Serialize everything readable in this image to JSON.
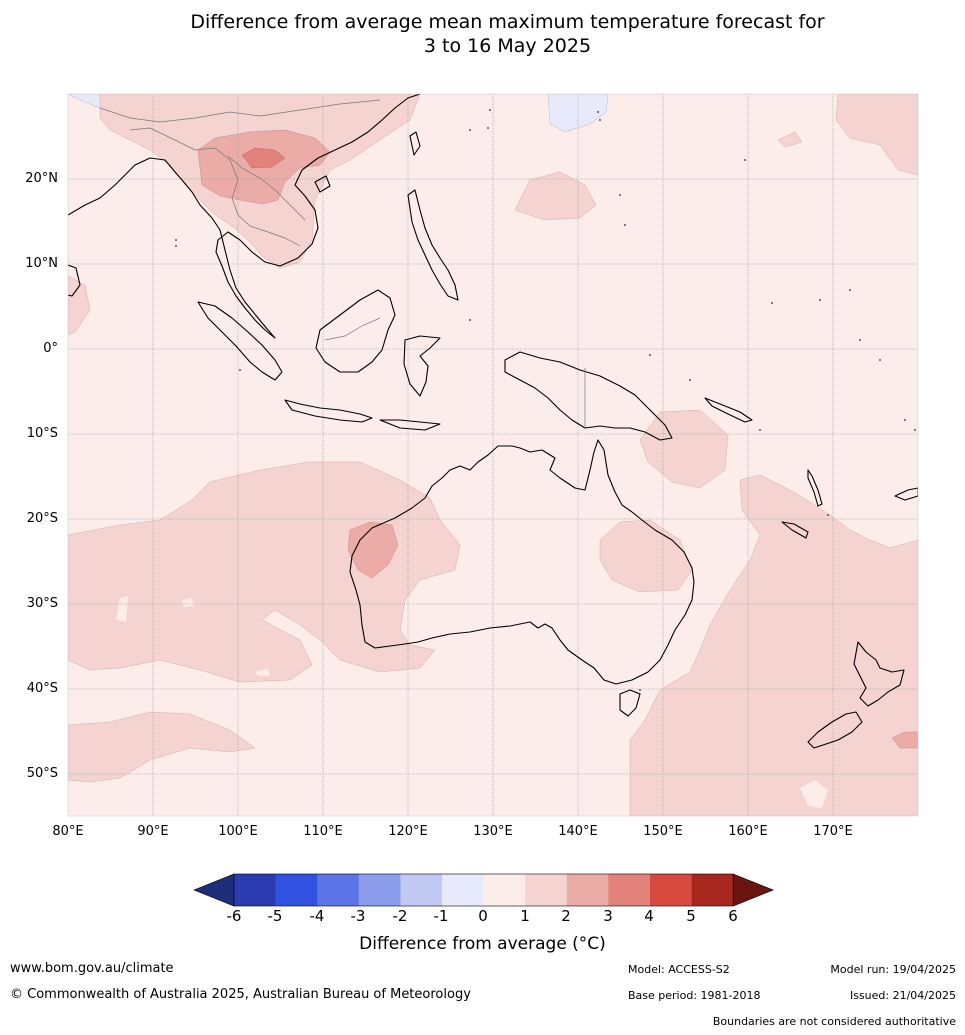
{
  "title_line1": "Difference from average mean maximum temperature forecast for",
  "title_line2": "3 to 16 May 2025",
  "lat_labels": [
    "20°N",
    "10°N",
    "0°",
    "10°S",
    "20°S",
    "30°S",
    "40°S",
    "50°S"
  ],
  "lon_labels": [
    "80°E",
    "90°E",
    "100°E",
    "110°E",
    "120°E",
    "130°E",
    "140°E",
    "150°E",
    "160°E",
    "170°E"
  ],
  "colorbar": {
    "ticks": [
      "-6",
      "-5",
      "-4",
      "-3",
      "-2",
      "-1",
      "0",
      "1",
      "2",
      "3",
      "4",
      "5",
      "6"
    ],
    "colors": [
      "#1f2e7a",
      "#2a3cb0",
      "#3152e0",
      "#5c74e6",
      "#8a9ceb",
      "#c1c9f2",
      "#e6eafb",
      "#fcecea",
      "#f4d3d0",
      "#ebaba7",
      "#e3827a",
      "#d8493f",
      "#a8281f",
      "#6b1510"
    ],
    "title": "Difference from average (°C)",
    "title_unit_symbol": "°"
  },
  "map": {
    "background_anomaly": "0 to 1",
    "areas": [
      {
        "region": "Indochina",
        "anomaly": "1 to 3",
        "peak": "3 to 4"
      },
      {
        "region": "Western Australia Pilbara",
        "anomaly": "2 to 3"
      },
      {
        "region": "Queensland",
        "anomaly": "1 to 2"
      },
      {
        "region": "Tasman Sea / New Zealand",
        "anomaly": "1 to 2"
      },
      {
        "region": "Southern Indian Ocean",
        "anomaly": "1 to 2"
      },
      {
        "region": "Northern China",
        "anomaly": "-1 to 0"
      }
    ]
  },
  "footer": {
    "website": "www.bom.gov.au/climate",
    "copyright": "© Commonwealth of Australia 2025, Australian Bureau of Meteorology",
    "model": "Model: ACCESS-S2",
    "base_period": "Base period: 1981-2018",
    "model_run": "Model run: 19/04/2025",
    "issued": "Issued: 21/04/2025",
    "boundaries_note": "Boundaries are not considered authoritative"
  }
}
